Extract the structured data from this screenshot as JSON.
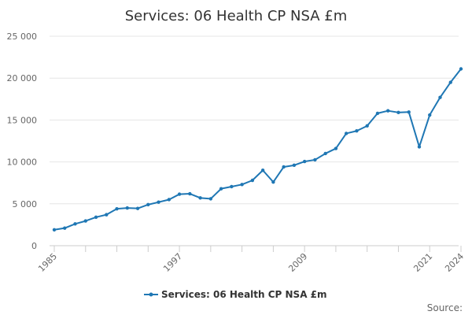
{
  "chart_data": {
    "type": "line",
    "title": "Services: 06 Health CP NSA £m",
    "xlabel": "",
    "ylabel": "",
    "xlim": [
      1985,
      2024
    ],
    "ylim": [
      0,
      25000
    ],
    "y_ticks": [
      0,
      5000,
      10000,
      15000,
      20000,
      25000
    ],
    "y_tick_labels": [
      "0",
      "5 000",
      "10 000",
      "15 000",
      "20 000",
      "25 000"
    ],
    "x_tick_labels": [
      "1985",
      "1997",
      "2009",
      "2021",
      "2024"
    ],
    "x_tick_values": [
      1985,
      1997,
      2009,
      2021,
      2024
    ],
    "x_minor_ticks": [
      1988,
      1991,
      1994,
      2000,
      2003,
      2006,
      2012,
      2015,
      2018
    ],
    "grid": true,
    "legend_position": "bottom",
    "series": [
      {
        "name": "Services: 06 Health CP NSA £m",
        "color": "#1f77b4",
        "x": [
          1985,
          1986,
          1987,
          1988,
          1989,
          1990,
          1991,
          1992,
          1993,
          1994,
          1995,
          1996,
          1997,
          1998,
          1999,
          2000,
          2001,
          2002,
          2003,
          2004,
          2005,
          2006,
          2007,
          2008,
          2009,
          2010,
          2011,
          2012,
          2013,
          2014,
          2015,
          2016,
          2017,
          2018,
          2019,
          2020,
          2021,
          2022,
          2023,
          2024
        ],
        "values": [
          1900,
          2100,
          2600,
          2950,
          3400,
          3700,
          4400,
          4500,
          4450,
          4900,
          5200,
          5500,
          6150,
          6200,
          5700,
          5600,
          6800,
          7050,
          7300,
          7800,
          9000,
          7600,
          9400,
          9600,
          10050,
          10250,
          11000,
          11600,
          13400,
          13700,
          14300,
          15800,
          16100,
          15900,
          15950,
          11800,
          15600,
          17700,
          19500,
          21100
        ]
      }
    ]
  },
  "source_label": "Source:"
}
